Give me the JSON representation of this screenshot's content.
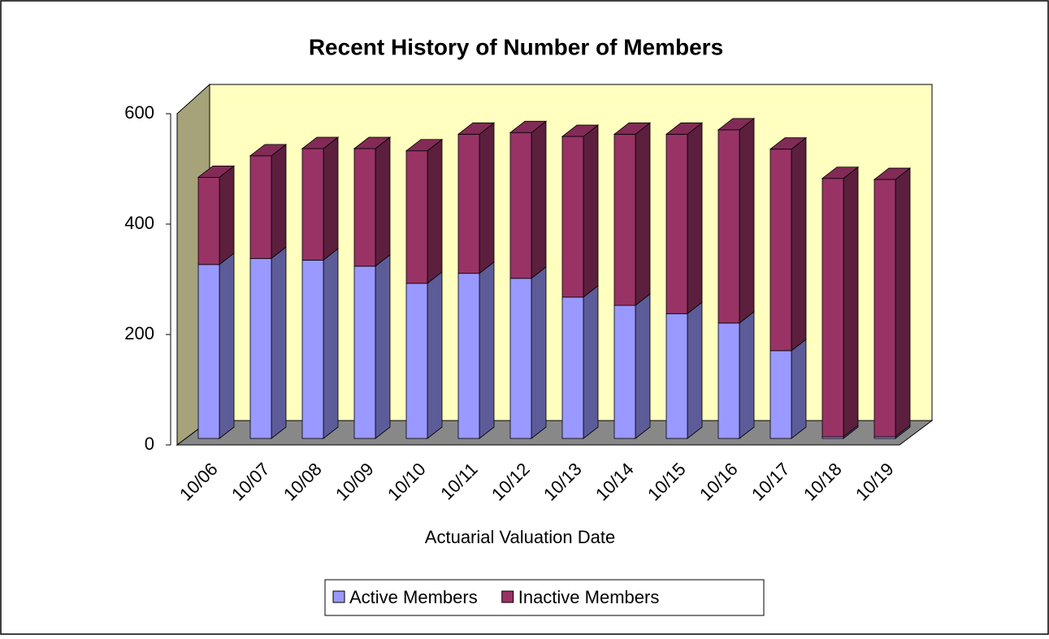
{
  "chart_data": {
    "type": "bar3d_stacked",
    "title": "Recent History of Number of Members",
    "x_label": "Actuarial Valuation Date",
    "categories": [
      "10/06",
      "10/07",
      "10/08",
      "10/09",
      "10/10",
      "10/11",
      "10/12",
      "10/13",
      "10/14",
      "10/15",
      "10/16",
      "10/17",
      "10/18",
      "10/19"
    ],
    "series": [
      {
        "name": "Active Members",
        "color": "#9999ff",
        "values": [
          315,
          326,
          323,
          312,
          281,
          299,
          290,
          256,
          241,
          226,
          209,
          159,
          3,
          3
        ]
      },
      {
        "name": "Inactive Members",
        "color": "#993366",
        "values": [
          158,
          186,
          202,
          213,
          240,
          252,
          264,
          291,
          310,
          325,
          350,
          365,
          468,
          466
        ]
      }
    ],
    "ylim": [
      0,
      600
    ],
    "yticks": [
      0,
      200,
      400,
      600
    ],
    "legend": "bottom"
  }
}
